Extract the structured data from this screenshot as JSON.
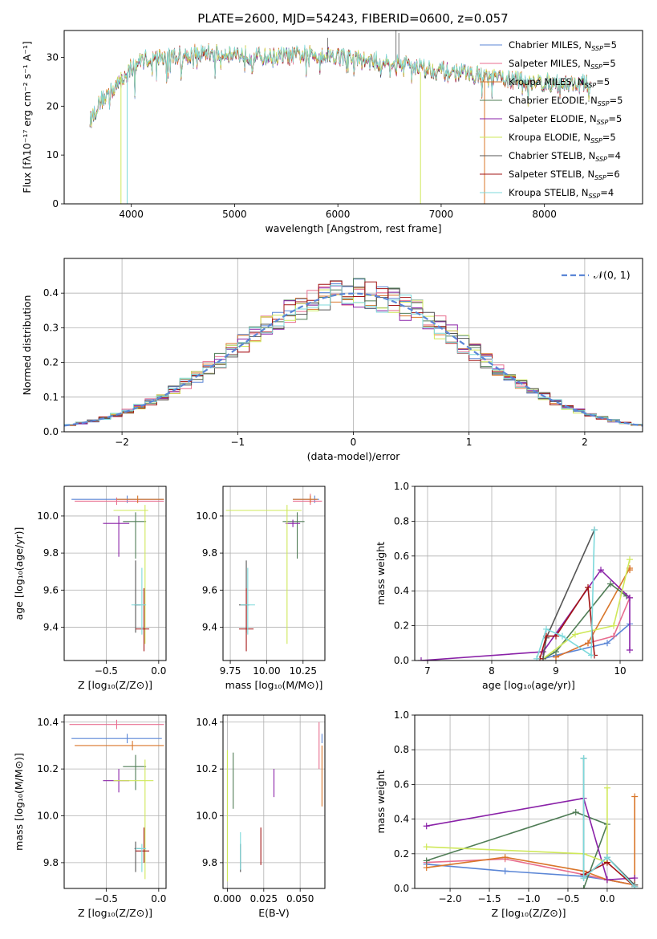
{
  "colors": {
    "Chabrier MILES": "#5b86d6",
    "Salpeter MILES": "#e86e8f",
    "Kroupa MILES": "#d9762a",
    "Chabrier ELODIE": "#4f7c55",
    "Salpeter ELODIE": "#8a22a8",
    "Kroupa ELODIE": "#cfe85a",
    "Chabrier STELIB": "#555555",
    "Salpeter STELIB": "#a31515",
    "Kroupa STELIB": "#7dd9db"
  },
  "chart_data": [
    {
      "id": "spectrum",
      "type": "line",
      "title": "PLATE=2600, MJD=54243, FIBERID=0600, z=0.057",
      "xlabel": "wavelength [Angstrom, rest frame]",
      "ylabel": "Flux [fλ10⁻¹⁷ erg cm⁻² s⁻¹ A⁻¹]",
      "xlim": [
        3350,
        8950
      ],
      "ylim": [
        0,
        35.5
      ],
      "xticks": [
        4000,
        5000,
        6000,
        7000,
        8000
      ],
      "yticks": [
        0,
        10,
        20,
        30
      ],
      "grid": false,
      "legend_position": "top-right",
      "continuum": {
        "x": [
          3600,
          3650,
          3700,
          3800,
          3900,
          4000,
          4100,
          4300,
          4500,
          4700,
          4900,
          5100,
          5300,
          5500,
          5700,
          5900,
          6100,
          6300,
          6500,
          6700,
          6900,
          7100,
          7300,
          7500,
          7700,
          7900,
          8100,
          8300,
          8500
        ],
        "y": [
          17,
          19,
          21,
          23,
          25,
          28,
          29.5,
          30,
          30.5,
          30.8,
          31,
          30.5,
          30,
          30.2,
          30.5,
          30.5,
          30,
          29,
          29.2,
          28.5,
          27.5,
          27,
          26.5,
          25.8,
          25.3,
          25,
          24.5,
          24.5,
          24.5
        ]
      },
      "series": [
        {
          "name": "Chabrier MILES",
          "n_ssp": "5"
        },
        {
          "name": "Salpeter MILES",
          "n_ssp": "5"
        },
        {
          "name": "Kroupa MILES",
          "n_ssp": "5"
        },
        {
          "name": "Chabrier ELODIE",
          "n_ssp": "5"
        },
        {
          "name": "Salpeter ELODIE",
          "n_ssp": "5"
        },
        {
          "name": "Kroupa ELODIE",
          "n_ssp": "5"
        },
        {
          "name": "Chabrier STELIB",
          "n_ssp": "4"
        },
        {
          "name": "Salpeter STELIB",
          "n_ssp": "6"
        },
        {
          "name": "Kroupa STELIB",
          "n_ssp": "4"
        }
      ]
    },
    {
      "id": "residuals",
      "type": "line",
      "xlabel": "(data-model)/error",
      "ylabel": "Normed distribution",
      "xlim": [
        -2.5,
        2.5
      ],
      "ylim": [
        0,
        0.5
      ],
      "xticks": [
        -2,
        -1,
        0,
        1,
        2
      ],
      "yticks": [
        0.0,
        0.1,
        0.2,
        0.3,
        0.4
      ],
      "grid": true,
      "legend_position": "top-right",
      "legend_label": "𝒩(0, 1)",
      "bin_width": 0.1
    },
    {
      "id": "age-z",
      "type": "scatter",
      "xlabel": "Z [log₁₀(Z/Z⊙)]",
      "ylabel": "age  [log₁₀(age/yr)]",
      "xlim": [
        -0.9,
        0.07
      ],
      "ylim": [
        9.22,
        10.16
      ],
      "xticks": [
        -0.5,
        0.0
      ],
      "yticks": [
        9.4,
        9.6,
        9.8,
        10.0
      ],
      "grid": true,
      "points": [
        {
          "series": "Chabrier MILES",
          "x": -0.3,
          "y": 10.09,
          "xerr": [
            0.53,
            0.35
          ],
          "yerr": [
            0.02,
            0.02
          ]
        },
        {
          "series": "Salpeter MILES",
          "x": -0.4,
          "y": 10.08,
          "xerr": [
            0.4,
            0.45
          ],
          "yerr": [
            0.02,
            0.02
          ]
        },
        {
          "series": "Kroupa MILES",
          "x": -0.2,
          "y": 10.09,
          "xerr": [
            0.2,
            0.25
          ],
          "yerr": [
            0.02,
            0.02
          ]
        },
        {
          "series": "Chabrier ELODIE",
          "x": -0.22,
          "y": 9.97,
          "xerr": [
            0.12,
            0.1
          ],
          "yerr": [
            0.2,
            0.05
          ]
        },
        {
          "series": "Salpeter ELODIE",
          "x": -0.38,
          "y": 9.96,
          "xerr": [
            0.15,
            0.1
          ],
          "yerr": [
            0.18,
            0.04
          ]
        },
        {
          "series": "Kroupa ELODIE",
          "x": -0.13,
          "y": 10.03,
          "xerr": [
            0.3,
            0.03
          ],
          "yerr": [
            0.72,
            0.03
          ]
        },
        {
          "series": "Chabrier STELIB",
          "x": -0.22,
          "y": 9.52,
          "xerr": [
            0.01,
            0.05
          ],
          "yerr": [
            0.15,
            0.24
          ]
        },
        {
          "series": "Salpeter STELIB",
          "x": -0.14,
          "y": 9.39,
          "xerr": [
            0.08,
            0.05
          ],
          "yerr": [
            0.12,
            0.22
          ]
        },
        {
          "series": "Kroupa STELIB",
          "x": -0.16,
          "y": 9.52,
          "xerr": [
            0.1,
            0.04
          ],
          "yerr": [
            0.16,
            0.2
          ]
        }
      ]
    },
    {
      "id": "age-mass",
      "type": "scatter",
      "xlabel": "mass [log₁₀(M/M⊙)]",
      "xlim": [
        9.7,
        10.4
      ],
      "ylim": [
        9.22,
        10.16
      ],
      "xticks": [
        9.75,
        10.0,
        10.25
      ],
      "yticks": [
        9.4,
        9.6,
        9.8,
        10.0
      ],
      "grid": true,
      "points": [
        {
          "series": "Chabrier MILES",
          "x": 10.33,
          "y": 10.09,
          "xerr": [
            0.15,
            0.03
          ],
          "yerr": [
            0.02,
            0.02
          ]
        },
        {
          "series": "Salpeter MILES",
          "x": 10.3,
          "y": 10.08,
          "xerr": [
            0.12,
            0.08
          ],
          "yerr": [
            0.02,
            0.04
          ]
        },
        {
          "series": "Kroupa MILES",
          "x": 10.3,
          "y": 10.09,
          "xerr": [
            0.12,
            0.05
          ],
          "yerr": [
            0.02,
            0.02
          ]
        },
        {
          "series": "Chabrier ELODIE",
          "x": 10.21,
          "y": 9.97,
          "xerr": [
            0.1,
            0.05
          ],
          "yerr": [
            0.2,
            0.05
          ]
        },
        {
          "series": "Salpeter ELODIE",
          "x": 10.18,
          "y": 9.96,
          "xerr": [
            0.05,
            0.05
          ],
          "yerr": [
            0.02,
            0.02
          ]
        },
        {
          "series": "Kroupa ELODIE",
          "x": 10.14,
          "y": 10.03,
          "xerr": [
            0.42,
            0.1
          ],
          "yerr": [
            0.72,
            0.03
          ]
        },
        {
          "series": "Chabrier STELIB",
          "x": 9.86,
          "y": 9.52,
          "xerr": [
            0.05,
            0.02
          ],
          "yerr": [
            0.15,
            0.24
          ]
        },
        {
          "series": "Salpeter STELIB",
          "x": 9.86,
          "y": 9.39,
          "xerr": [
            0.05,
            0.05
          ],
          "yerr": [
            0.12,
            0.22
          ]
        },
        {
          "series": "Kroupa STELIB",
          "x": 9.87,
          "y": 9.52,
          "xerr": [
            0.05,
            0.05
          ],
          "yerr": [
            0.16,
            0.2
          ]
        }
      ]
    },
    {
      "id": "weight-age",
      "type": "line",
      "xlabel": "age  [log₁₀(age/yr)]",
      "ylabel": "mass weight",
      "xlim": [
        6.8,
        10.35
      ],
      "ylim": [
        0,
        1.0
      ],
      "xticks": [
        7,
        8,
        9,
        10
      ],
      "yticks": [
        0.0,
        0.2,
        0.4,
        0.6,
        0.8,
        1.0
      ],
      "grid": true,
      "series": [
        {
          "name": "Chabrier MILES",
          "x": [
            8.8,
            9.0,
            9.8,
            10.15
          ],
          "y": [
            0.01,
            0.03,
            0.1,
            0.21
          ]
        },
        {
          "name": "Salpeter MILES",
          "x": [
            9.0,
            9.5,
            9.9,
            10.15
          ],
          "y": [
            0.02,
            0.1,
            0.14,
            0.36
          ]
        },
        {
          "name": "Kroupa MILES",
          "x": [
            9.0,
            9.5,
            10.15,
            10.15
          ],
          "y": [
            0.02,
            0.1,
            0.53,
            0.52
          ]
        },
        {
          "name": "Chabrier ELODIE",
          "x": [
            8.8,
            9.0,
            9.85,
            10.1
          ],
          "y": [
            0.01,
            0.05,
            0.44,
            0.37
          ]
        },
        {
          "name": "Salpeter ELODIE",
          "x": [
            6.9,
            8.8,
            9.7,
            10.15,
            10.15
          ],
          "y": [
            0.0,
            0.05,
            0.52,
            0.36,
            0.06
          ]
        },
        {
          "name": "Kroupa ELODIE",
          "x": [
            8.8,
            9.3,
            9.9,
            10.15
          ],
          "y": [
            0.01,
            0.15,
            0.2,
            0.58
          ]
        },
        {
          "name": "Chabrier STELIB",
          "x": [
            8.8,
            8.85,
            9.6
          ],
          "y": [
            0.01,
            0.13,
            0.75
          ]
        },
        {
          "name": "Salpeter STELIB",
          "x": [
            8.75,
            8.85,
            9.0,
            9.5,
            9.6
          ],
          "y": [
            0.01,
            0.14,
            0.14,
            0.42,
            0.03
          ]
        },
        {
          "name": "Kroupa STELIB",
          "x": [
            8.7,
            8.85,
            9.1,
            9.55,
            9.6
          ],
          "y": [
            0.01,
            0.18,
            0.14,
            0.03,
            0.75
          ]
        }
      ]
    },
    {
      "id": "mass-z",
      "type": "scatter",
      "xlabel": "Z [log₁₀(Z/Z⊙)]",
      "ylabel": "mass [log₁₀(M/M⊙)]",
      "xlim": [
        -0.9,
        0.07
      ],
      "ylim": [
        9.69,
        10.43
      ],
      "xticks": [
        -0.5,
        0.0
      ],
      "yticks": [
        9.8,
        10.0,
        10.2,
        10.4
      ],
      "grid": true,
      "points": [
        {
          "series": "Chabrier MILES",
          "x": -0.3,
          "y": 10.33,
          "xerr": [
            0.53,
            0.33
          ],
          "yerr": [
            0.02,
            0.02
          ]
        },
        {
          "series": "Salpeter MILES",
          "x": -0.4,
          "y": 10.39,
          "xerr": [
            0.45,
            0.45
          ],
          "yerr": [
            0.02,
            0.02
          ]
        },
        {
          "series": "Kroupa MILES",
          "x": -0.25,
          "y": 10.3,
          "xerr": [
            0.55,
            0.3
          ],
          "yerr": [
            0.02,
            0.02
          ]
        },
        {
          "series": "Chabrier ELODIE",
          "x": -0.22,
          "y": 10.21,
          "xerr": [
            0.12,
            0.1
          ],
          "yerr": [
            0.1,
            0.05
          ]
        },
        {
          "series": "Salpeter ELODIE",
          "x": -0.38,
          "y": 10.15,
          "xerr": [
            0.15,
            0.1
          ],
          "yerr": [
            0.05,
            0.05
          ]
        },
        {
          "series": "Kroupa ELODIE",
          "x": -0.13,
          "y": 10.15,
          "xerr": [
            0.3,
            0.08
          ],
          "yerr": [
            0.42,
            0.09
          ]
        },
        {
          "series": "Chabrier STELIB",
          "x": -0.22,
          "y": 9.86,
          "xerr": [
            0.01,
            0.05
          ],
          "yerr": [
            0.1,
            0.03
          ]
        },
        {
          "series": "Salpeter STELIB",
          "x": -0.14,
          "y": 9.85,
          "xerr": [
            0.08,
            0.05
          ],
          "yerr": [
            0.05,
            0.1
          ]
        },
        {
          "series": "Kroupa STELIB",
          "x": -0.16,
          "y": 9.86,
          "xerr": [
            0.06,
            0.04
          ],
          "yerr": [
            0.1,
            0.02
          ]
        }
      ]
    },
    {
      "id": "mass-ebv",
      "type": "scatter",
      "xlabel": "E(B-V)",
      "xlim": [
        -0.003,
        0.067
      ],
      "ylim": [
        9.69,
        10.43
      ],
      "xticks": [
        0.0,
        0.025,
        0.05
      ],
      "xticklabels": [
        "0.000",
        "0.025",
        "0.050"
      ],
      "yticks": [
        9.8,
        10.0,
        10.2,
        10.4
      ],
      "grid": true,
      "points": [
        {
          "series": "Chabrier MILES",
          "x": 0.065,
          "y": 10.33,
          "xerr": [
            0,
            0
          ],
          "yerr": [
            0.02,
            0.02
          ]
        },
        {
          "series": "Salpeter MILES",
          "x": 0.063,
          "y": 10.3,
          "xerr": [
            0,
            0
          ],
          "yerr": [
            0.1,
            0.1
          ]
        },
        {
          "series": "Kroupa MILES",
          "x": 0.065,
          "y": 10.17,
          "xerr": [
            0,
            0
          ],
          "yerr": [
            0.13,
            0.13
          ]
        },
        {
          "series": "Chabrier ELODIE",
          "x": 0.004,
          "y": 10.15,
          "xerr": [
            0,
            0
          ],
          "yerr": [
            0.12,
            0.12
          ]
        },
        {
          "series": "Salpeter ELODIE",
          "x": 0.032,
          "y": 10.14,
          "xerr": [
            0,
            0
          ],
          "yerr": [
            0.06,
            0.06
          ]
        },
        {
          "series": "Kroupa ELODIE",
          "x": 0.0,
          "y": 10.0,
          "xerr": [
            0,
            0
          ],
          "yerr": [
            0.28,
            0.28
          ]
        },
        {
          "series": "Chabrier STELIB",
          "x": 0.009,
          "y": 9.82,
          "xerr": [
            0,
            0
          ],
          "yerr": [
            0.06,
            0.06
          ]
        },
        {
          "series": "Salpeter STELIB",
          "x": 0.023,
          "y": 9.87,
          "xerr": [
            0,
            0
          ],
          "yerr": [
            0.08,
            0.08
          ]
        },
        {
          "series": "Kroupa STELIB",
          "x": 0.009,
          "y": 9.85,
          "xerr": [
            0,
            0
          ],
          "yerr": [
            0.08,
            0.08
          ]
        }
      ]
    },
    {
      "id": "weight-z",
      "type": "line",
      "xlabel": "Z [log₁₀(Z/Z⊙)]",
      "ylabel": "mass weight",
      "xlim": [
        -2.45,
        0.45
      ],
      "ylim": [
        0,
        1.0
      ],
      "xticks": [
        -2.0,
        -1.5,
        -1.0,
        -0.5,
        0.0
      ],
      "yticks": [
        0.0,
        0.2,
        0.4,
        0.6,
        0.8,
        1.0
      ],
      "grid": true,
      "series": [
        {
          "name": "Chabrier MILES",
          "x": [
            -2.3,
            -1.3,
            -0.3,
            0.0,
            0.35
          ],
          "y": [
            0.14,
            0.1,
            0.07,
            0.05,
            0.02
          ]
        },
        {
          "name": "Salpeter MILES",
          "x": [
            -2.3,
            -1.3,
            -0.3,
            0.0,
            0.35
          ],
          "y": [
            0.15,
            0.17,
            0.08,
            0.05,
            0.02
          ]
        },
        {
          "name": "Kroupa MILES",
          "x": [
            -2.3,
            -1.3,
            -0.3,
            0.0,
            0.35,
            0.35
          ],
          "y": [
            0.12,
            0.18,
            0.1,
            0.05,
            0.02,
            0.53
          ]
        },
        {
          "name": "Chabrier ELODIE",
          "x": [
            -2.3,
            -0.4,
            0.0,
            -0.3
          ],
          "y": [
            0.16,
            0.44,
            0.37,
            0.0
          ]
        },
        {
          "name": "Salpeter ELODIE",
          "x": [
            -2.3,
            -0.3,
            0.0,
            0.35
          ],
          "y": [
            0.36,
            0.52,
            0.05,
            0.06
          ]
        },
        {
          "name": "Kroupa ELODIE",
          "x": [
            -2.3,
            -0.3,
            0.0,
            0.0
          ],
          "y": [
            0.24,
            0.2,
            0.15,
            0.58
          ]
        },
        {
          "name": "Chabrier STELIB",
          "x": [
            -0.3,
            -0.3,
            0.0,
            0.35
          ],
          "y": [
            0.75,
            0.06,
            0.18,
            0.02
          ]
        },
        {
          "name": "Salpeter STELIB",
          "x": [
            -0.3,
            0.0,
            0.35
          ],
          "y": [
            0.08,
            0.15,
            0.01
          ]
        },
        {
          "name": "Kroupa STELIB",
          "x": [
            -0.3,
            -0.3,
            0.0,
            0.35
          ],
          "y": [
            0.75,
            0.06,
            0.18,
            0.01
          ]
        }
      ]
    }
  ]
}
